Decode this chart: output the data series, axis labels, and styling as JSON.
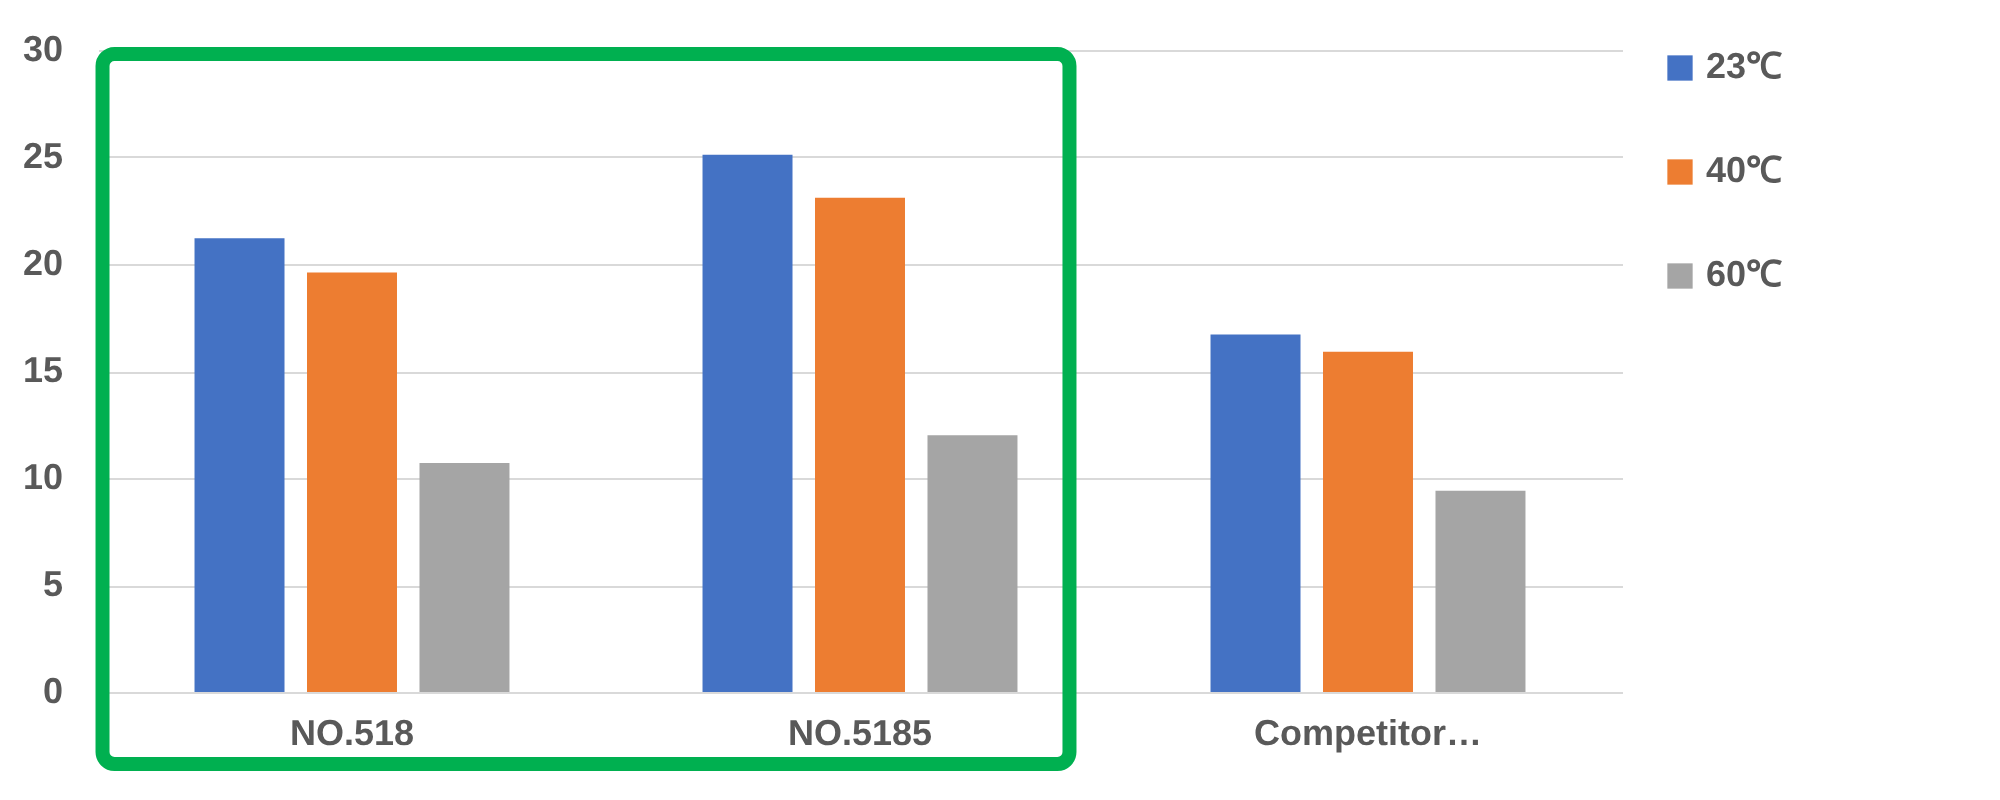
{
  "chart_data": {
    "type": "bar",
    "categories": [
      "NO.518",
      "NO.5185",
      "Competitor…"
    ],
    "series": [
      {
        "name": "23℃",
        "color": "#4472c4",
        "values": [
          21.2,
          25.1,
          16.7
        ]
      },
      {
        "name": "40℃",
        "color": "#ed7d31",
        "values": [
          19.6,
          23.1,
          15.9
        ]
      },
      {
        "name": "60℃",
        "color": "#a5a5a5",
        "values": [
          10.7,
          12.0,
          9.4
        ]
      }
    ],
    "ylim": [
      0,
      30
    ],
    "yticks": [
      0,
      5,
      10,
      15,
      20,
      25,
      30
    ],
    "grid": "y",
    "legend": "right"
  }
}
